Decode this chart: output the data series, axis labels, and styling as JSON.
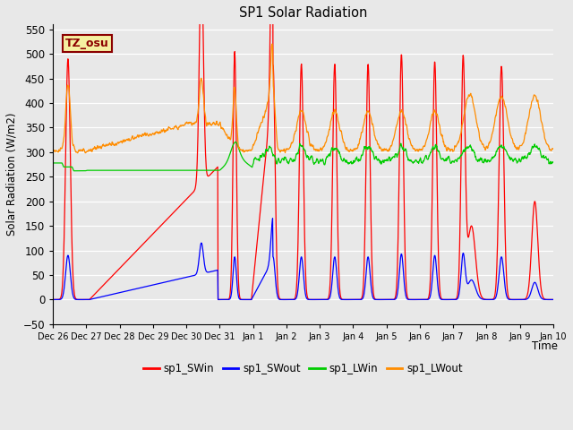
{
  "title": "SP1 Solar Radiation",
  "xlabel": "Time",
  "ylabel": "Solar Radiation (W/m2)",
  "ylim": [
    -50,
    560
  ],
  "yticks": [
    -50,
    0,
    50,
    100,
    150,
    200,
    250,
    300,
    350,
    400,
    450,
    500,
    550
  ],
  "bg_color": "#e8e8e8",
  "plot_bg_color": "#e8e8e8",
  "annotation_text": "TZ_osu",
  "annotation_bg": "#f5f0a0",
  "annotation_border": "#8b0000",
  "series_colors": {
    "sp1_SWin": "#ff0000",
    "sp1_SWout": "#0000ff",
    "sp1_LWin": "#00cc00",
    "sp1_LWout": "#ff8c00"
  },
  "date_labels": [
    "Dec 26",
    "Dec 27",
    "Dec 28",
    "Dec 29",
    "Dec 30",
    "Dec 31",
    "Jan 1",
    "Jan 2",
    "Jan 3",
    "Jan 4",
    "Jan 5",
    "Jan 6",
    "Jan 7",
    "Jan 8",
    "Jan 9",
    "Jan 10"
  ],
  "date_tick_positions": [
    0,
    1,
    2,
    3,
    4,
    5,
    6,
    7,
    8,
    9,
    10,
    11,
    12,
    13,
    14,
    15
  ]
}
